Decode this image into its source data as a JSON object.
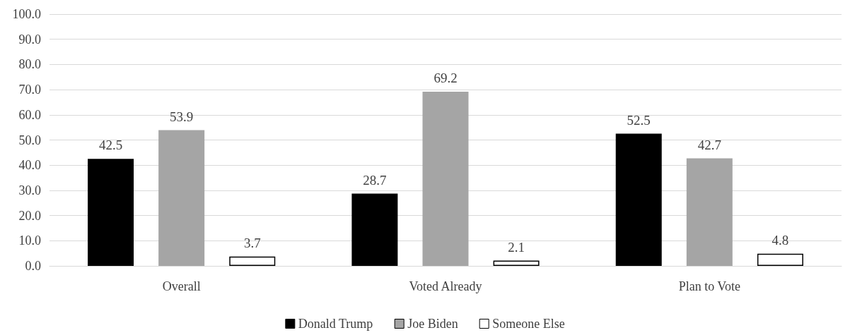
{
  "chart_data": {
    "type": "bar",
    "categories": [
      "Overall",
      "Voted Already",
      "Plan to Vote"
    ],
    "series": [
      {
        "name": "Donald Trump",
        "color": "#000000",
        "values": [
          42.5,
          28.7,
          52.5
        ]
      },
      {
        "name": "Joe Biden",
        "color": "#a5a5a5",
        "values": [
          53.9,
          69.2,
          42.7
        ]
      },
      {
        "name": "Someone Else",
        "color": "#ffffff",
        "values": [
          3.7,
          2.1,
          4.8
        ]
      }
    ],
    "ylim": [
      0,
      100
    ],
    "yticks": [
      {
        "value": 0,
        "label": "0.0"
      },
      {
        "value": 10,
        "label": "10.0"
      },
      {
        "value": 20,
        "label": "20.0"
      },
      {
        "value": 30,
        "label": "30.0"
      },
      {
        "value": 40,
        "label": "40.0"
      },
      {
        "value": 50,
        "label": "50.0"
      },
      {
        "value": 60,
        "label": "60.0"
      },
      {
        "value": 70,
        "label": "70.0"
      },
      {
        "value": 80,
        "label": "80.0"
      },
      {
        "value": 90,
        "label": "90.0"
      },
      {
        "value": 100,
        "label": "100.0"
      }
    ],
    "grid": true,
    "data_labels": true,
    "legend": "bottom"
  }
}
